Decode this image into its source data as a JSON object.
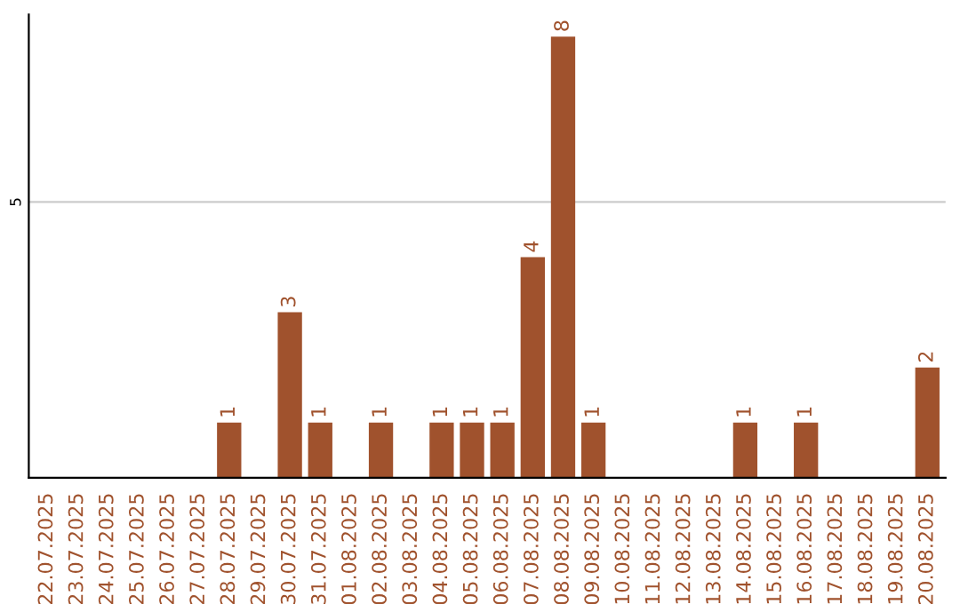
{
  "chart_data": {
    "type": "bar",
    "categories": [
      "22.07.2025",
      "23.07.2025",
      "24.07.2025",
      "25.07.2025",
      "26.07.2025",
      "27.07.2025",
      "28.07.2025",
      "29.07.2025",
      "30.07.2025",
      "31.07.2025",
      "01.08.2025",
      "02.08.2025",
      "03.08.2025",
      "04.08.2025",
      "05.08.2025",
      "06.08.2025",
      "07.08.2025",
      "08.08.2025",
      "09.08.2025",
      "10.08.2025",
      "11.08.2025",
      "12.08.2025",
      "13.08.2025",
      "14.08.2025",
      "15.08.2025",
      "16.08.2025",
      "17.08.2025",
      "18.08.2025",
      "19.08.2025",
      "20.08.2025"
    ],
    "values": [
      0,
      0,
      0,
      0,
      0,
      0,
      1,
      0,
      3,
      1,
      0,
      1,
      0,
      1,
      1,
      1,
      4,
      8,
      1,
      0,
      0,
      0,
      0,
      1,
      0,
      1,
      0,
      0,
      0,
      2
    ],
    "value_labels": [
      null,
      null,
      null,
      null,
      null,
      null,
      "1",
      null,
      "3",
      "1",
      null,
      "1",
      null,
      "1",
      "1",
      "1",
      "4",
      "8",
      "1",
      null,
      null,
      null,
      null,
      "1",
      null,
      "1",
      null,
      null,
      null,
      "2"
    ],
    "color": "#a0522d",
    "ylim": [
      0,
      8.4
    ],
    "yticks": [
      5
    ],
    "grid": "y"
  }
}
